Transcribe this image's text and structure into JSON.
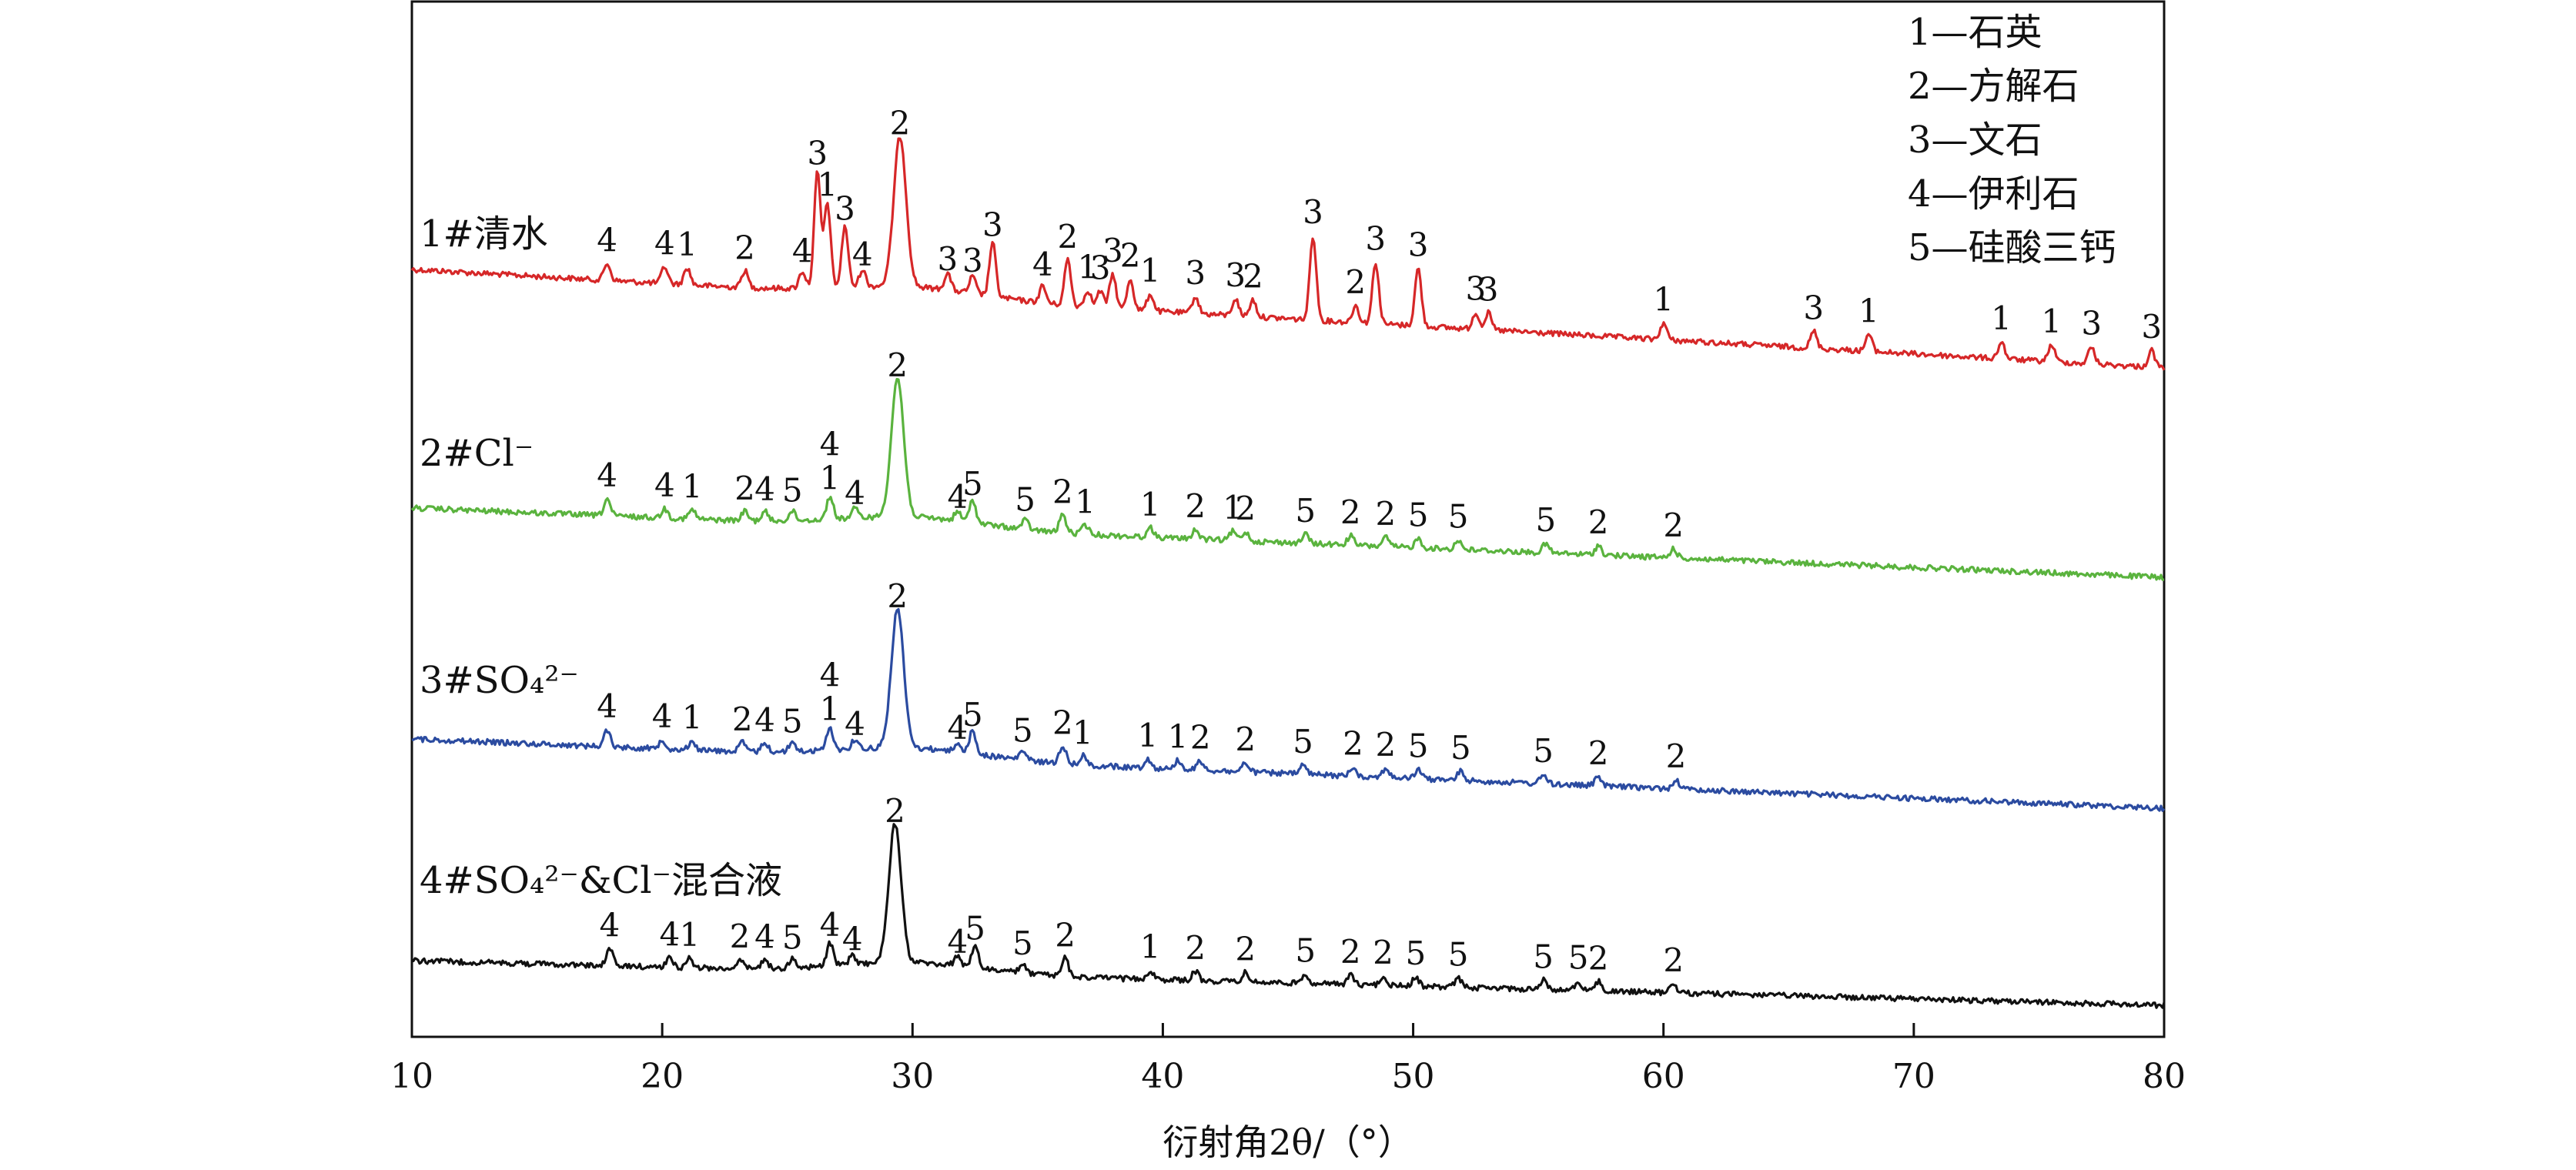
{
  "chart_data": {
    "type": "line",
    "xlabel": "衍射角2θ/（°）",
    "xlim": [
      10,
      80
    ],
    "xticks": [
      10,
      20,
      30,
      40,
      50,
      60,
      70,
      80
    ],
    "grid": false,
    "legend_placement": "top-right",
    "legend": [
      "1—石英",
      "2—方解石",
      "3—文石",
      "4—伊利石",
      "5—硅酸三钙"
    ],
    "series": [
      {
        "name": "1#清水",
        "color": "#d62728",
        "peak_labels": [
          {
            "x": 17.8,
            "label": "4"
          },
          {
            "x": 20.1,
            "label": "4"
          },
          {
            "x": 21.0,
            "label": "1"
          },
          {
            "x": 23.3,
            "label": "2"
          },
          {
            "x": 25.6,
            "label": "4"
          },
          {
            "x": 26.2,
            "label": "3"
          },
          {
            "x": 26.6,
            "label": "1"
          },
          {
            "x": 27.3,
            "label": "3"
          },
          {
            "x": 28.0,
            "label": "4"
          },
          {
            "x": 29.5,
            "label": "2"
          },
          {
            "x": 31.4,
            "label": "3"
          },
          {
            "x": 32.4,
            "label": "3"
          },
          {
            "x": 33.2,
            "label": "3"
          },
          {
            "x": 35.2,
            "label": "4"
          },
          {
            "x": 36.2,
            "label": "2"
          },
          {
            "x": 37.0,
            "label": "1"
          },
          {
            "x": 37.5,
            "label": "3"
          },
          {
            "x": 38.0,
            "label": "3"
          },
          {
            "x": 38.7,
            "label": "2"
          },
          {
            "x": 39.5,
            "label": "1"
          },
          {
            "x": 41.3,
            "label": "3"
          },
          {
            "x": 42.9,
            "label": "3"
          },
          {
            "x": 43.6,
            "label": "2"
          },
          {
            "x": 46.0,
            "label": "3"
          },
          {
            "x": 47.7,
            "label": "2"
          },
          {
            "x": 48.5,
            "label": "3"
          },
          {
            "x": 50.2,
            "label": "3"
          },
          {
            "x": 52.5,
            "label": "3"
          },
          {
            "x": 53.0,
            "label": "3"
          },
          {
            "x": 60.0,
            "label": "1"
          },
          {
            "x": 66.0,
            "label": "3"
          },
          {
            "x": 68.2,
            "label": "1"
          },
          {
            "x": 73.5,
            "label": "1"
          },
          {
            "x": 75.5,
            "label": "1"
          },
          {
            "x": 77.1,
            "label": "3"
          },
          {
            "x": 79.5,
            "label": "3"
          }
        ]
      },
      {
        "name": "2#Cl⁻",
        "color": "#5ab33e",
        "peak_labels": [
          {
            "x": 17.8,
            "label": "4"
          },
          {
            "x": 20.1,
            "label": "4"
          },
          {
            "x": 21.2,
            "label": "1"
          },
          {
            "x": 23.3,
            "label": "2"
          },
          {
            "x": 24.1,
            "label": "4"
          },
          {
            "x": 25.2,
            "label": "5"
          },
          {
            "x": 26.7,
            "label": "1"
          },
          {
            "x": 26.7,
            "label": "4"
          },
          {
            "x": 27.7,
            "label": "4"
          },
          {
            "x": 29.4,
            "label": "2"
          },
          {
            "x": 31.8,
            "label": "4"
          },
          {
            "x": 32.4,
            "label": "5"
          },
          {
            "x": 34.5,
            "label": "5"
          },
          {
            "x": 36.0,
            "label": "2"
          },
          {
            "x": 36.9,
            "label": "1"
          },
          {
            "x": 39.5,
            "label": "1"
          },
          {
            "x": 41.3,
            "label": "2"
          },
          {
            "x": 42.8,
            "label": "1"
          },
          {
            "x": 43.3,
            "label": "2"
          },
          {
            "x": 45.7,
            "label": "5"
          },
          {
            "x": 47.5,
            "label": "2"
          },
          {
            "x": 48.9,
            "label": "2"
          },
          {
            "x": 50.2,
            "label": "5"
          },
          {
            "x": 51.8,
            "label": "5"
          },
          {
            "x": 55.3,
            "label": "5"
          },
          {
            "x": 57.4,
            "label": "2"
          },
          {
            "x": 60.4,
            "label": "2"
          }
        ]
      },
      {
        "name": "3#SO₄²⁻",
        "color": "#2b4ba0",
        "peak_labels": [
          {
            "x": 17.8,
            "label": "4"
          },
          {
            "x": 20.0,
            "label": "4"
          },
          {
            "x": 21.2,
            "label": "1"
          },
          {
            "x": 23.2,
            "label": "2"
          },
          {
            "x": 24.1,
            "label": "4"
          },
          {
            "x": 25.2,
            "label": "5"
          },
          {
            "x": 26.7,
            "label": "1"
          },
          {
            "x": 26.7,
            "label": "4"
          },
          {
            "x": 27.7,
            "label": "4"
          },
          {
            "x": 29.4,
            "label": "2"
          },
          {
            "x": 31.8,
            "label": "4"
          },
          {
            "x": 32.4,
            "label": "5"
          },
          {
            "x": 34.4,
            "label": "5"
          },
          {
            "x": 36.0,
            "label": "2"
          },
          {
            "x": 36.8,
            "label": "1"
          },
          {
            "x": 39.4,
            "label": "1"
          },
          {
            "x": 40.6,
            "label": "1"
          },
          {
            "x": 41.5,
            "label": "2"
          },
          {
            "x": 43.3,
            "label": "2"
          },
          {
            "x": 45.6,
            "label": "5"
          },
          {
            "x": 47.6,
            "label": "2"
          },
          {
            "x": 48.9,
            "label": "2"
          },
          {
            "x": 50.2,
            "label": "5"
          },
          {
            "x": 51.9,
            "label": "5"
          },
          {
            "x": 55.2,
            "label": "5"
          },
          {
            "x": 57.4,
            "label": "2"
          },
          {
            "x": 60.5,
            "label": "2"
          }
        ]
      },
      {
        "name": "4#SO₄²⁻&Cl⁻混合液",
        "color": "#111111",
        "peak_labels": [
          {
            "x": 17.9,
            "label": "4"
          },
          {
            "x": 20.3,
            "label": "4"
          },
          {
            "x": 21.1,
            "label": "1"
          },
          {
            "x": 23.1,
            "label": "2"
          },
          {
            "x": 24.1,
            "label": "4"
          },
          {
            "x": 25.2,
            "label": "5"
          },
          {
            "x": 26.7,
            "label": "4"
          },
          {
            "x": 27.6,
            "label": "4"
          },
          {
            "x": 29.3,
            "label": "2"
          },
          {
            "x": 31.8,
            "label": "4"
          },
          {
            "x": 32.5,
            "label": "5"
          },
          {
            "x": 34.4,
            "label": "5"
          },
          {
            "x": 36.1,
            "label": "2"
          },
          {
            "x": 39.5,
            "label": "1"
          },
          {
            "x": 41.3,
            "label": "2"
          },
          {
            "x": 43.3,
            "label": "2"
          },
          {
            "x": 45.7,
            "label": "5"
          },
          {
            "x": 47.5,
            "label": "2"
          },
          {
            "x": 48.8,
            "label": "2"
          },
          {
            "x": 50.1,
            "label": "5"
          },
          {
            "x": 51.8,
            "label": "5"
          },
          {
            "x": 55.2,
            "label": "5"
          },
          {
            "x": 56.6,
            "label": "5"
          },
          {
            "x": 57.4,
            "label": "2"
          },
          {
            "x": 60.4,
            "label": "2"
          }
        ]
      }
    ]
  }
}
